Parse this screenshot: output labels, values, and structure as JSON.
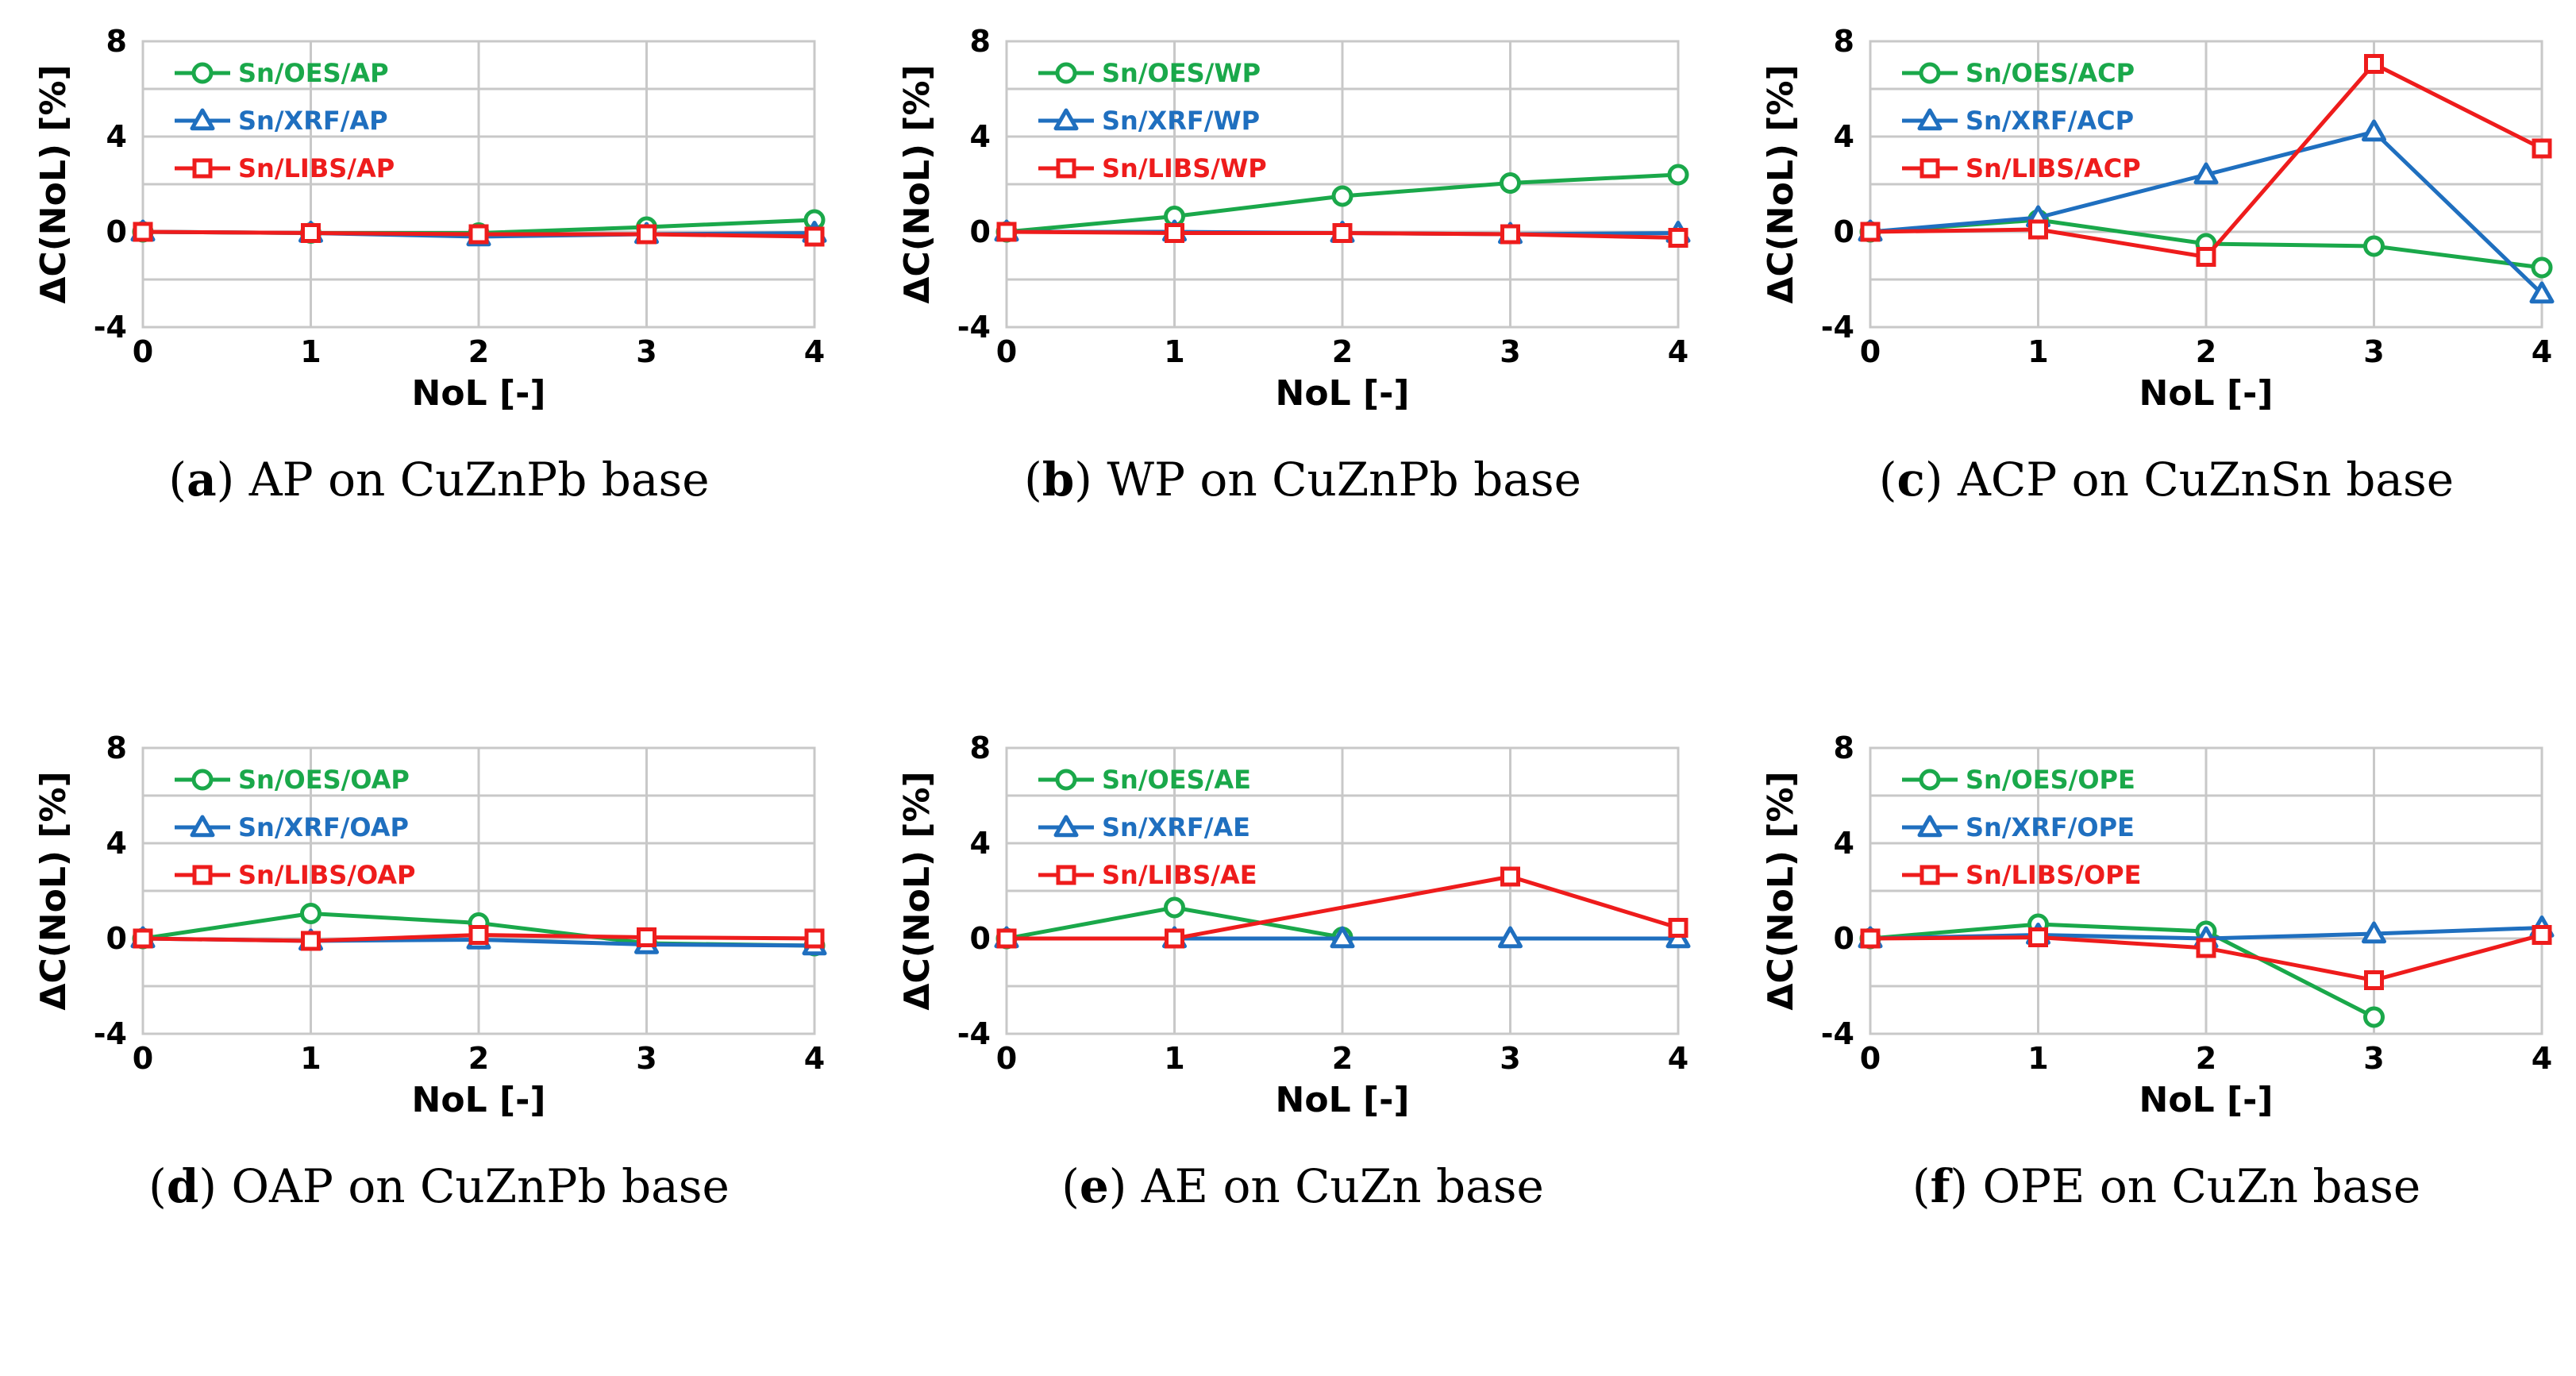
{
  "chart_data": [
    {
      "type": "line",
      "caption": {
        "letter": "a",
        "text": "AP on CuZnPb base"
      },
      "x": [
        0,
        1,
        2,
        3,
        4
      ],
      "xlabel": "NoL [-]",
      "ylabel": "ΔC(NoL) [%]",
      "ylim": [
        -4,
        8
      ],
      "yticks": [
        -4,
        0,
        4,
        8
      ],
      "grid": true,
      "legend_position": "top-left",
      "series": [
        {
          "name": "Sn/OES/AP",
          "color": "#1aa84a",
          "marker": "circle",
          "values": [
            0,
            -0.05,
            -0.05,
            0.2,
            0.5
          ]
        },
        {
          "name": "Sn/XRF/AP",
          "color": "#1f6fbf",
          "marker": "triangle",
          "values": [
            0,
            -0.05,
            -0.2,
            -0.1,
            -0.05
          ]
        },
        {
          "name": "Sn/LIBS/AP",
          "color": "#ee1c1c",
          "marker": "square",
          "values": [
            0,
            -0.05,
            -0.1,
            -0.1,
            -0.2
          ]
        }
      ]
    },
    {
      "type": "line",
      "caption": {
        "letter": "b",
        "text": "WP on CuZnPb base"
      },
      "x": [
        0,
        1,
        2,
        3,
        4
      ],
      "xlabel": "NoL [-]",
      "ylabel": "ΔC(NoL) [%]",
      "ylim": [
        -4,
        8
      ],
      "yticks": [
        -4,
        0,
        4,
        8
      ],
      "grid": true,
      "legend_position": "top-left",
      "series": [
        {
          "name": "Sn/OES/WP",
          "color": "#1aa84a",
          "marker": "circle",
          "values": [
            0,
            0.65,
            1.5,
            2.05,
            2.4
          ]
        },
        {
          "name": "Sn/XRF/WP",
          "color": "#1f6fbf",
          "marker": "triangle",
          "values": [
            0,
            0,
            -0.05,
            -0.1,
            -0.05
          ]
        },
        {
          "name": "Sn/LIBS/WP",
          "color": "#ee1c1c",
          "marker": "square",
          "values": [
            0,
            -0.05,
            -0.05,
            -0.1,
            -0.25
          ]
        }
      ]
    },
    {
      "type": "line",
      "caption": {
        "letter": "c",
        "text": "ACP on CuZnSn base"
      },
      "x": [
        0,
        1,
        2,
        3,
        4
      ],
      "xlabel": "NoL [-]",
      "ylabel": "ΔC(NoL) [%]",
      "ylim": [
        -4,
        8
      ],
      "yticks": [
        -4,
        0,
        4,
        8
      ],
      "grid": true,
      "legend_position": "top-left",
      "series": [
        {
          "name": "Sn/OES/ACP",
          "color": "#1aa84a",
          "marker": "circle",
          "values": [
            0,
            0.5,
            -0.5,
            -0.6,
            -1.5
          ]
        },
        {
          "name": "Sn/XRF/ACP",
          "color": "#1f6fbf",
          "marker": "triangle",
          "values": [
            0,
            0.6,
            2.4,
            4.2,
            -2.6
          ]
        },
        {
          "name": "Sn/LIBS/ACP",
          "color": "#ee1c1c",
          "marker": "square",
          "values": [
            0,
            0.1,
            -1.05,
            7.05,
            3.5
          ]
        }
      ]
    },
    {
      "type": "line",
      "caption": {
        "letter": "d",
        "text": "OAP on CuZnPb base"
      },
      "x": [
        0,
        1,
        2,
        3,
        4
      ],
      "xlabel": "NoL [-]",
      "ylabel": "ΔC(NoL) [%]",
      "ylim": [
        -4,
        8
      ],
      "yticks": [
        -4,
        0,
        4,
        8
      ],
      "grid": true,
      "legend_position": "top-left",
      "series": [
        {
          "name": "Sn/OES/OAP",
          "color": "#1aa84a",
          "marker": "circle",
          "values": [
            0,
            1.05,
            0.65,
            -0.2,
            -0.3
          ]
        },
        {
          "name": "Sn/XRF/OAP",
          "color": "#1f6fbf",
          "marker": "triangle",
          "values": [
            0,
            -0.1,
            -0.05,
            -0.25,
            -0.3
          ]
        },
        {
          "name": "Sn/LIBS/OAP",
          "color": "#ee1c1c",
          "marker": "square",
          "values": [
            0,
            -0.1,
            0.15,
            0.05,
            0
          ]
        }
      ]
    },
    {
      "type": "line",
      "caption": {
        "letter": "e",
        "text": "AE on CuZn base"
      },
      "x": [
        0,
        1,
        2,
        3,
        4
      ],
      "xlabel": "NoL [-]",
      "ylabel": "ΔC(NoL) [%]",
      "ylim": [
        -4,
        8
      ],
      "yticks": [
        -4,
        0,
        4,
        8
      ],
      "grid": true,
      "legend_position": "top-left",
      "series": [
        {
          "name": "Sn/OES/AE",
          "color": "#1aa84a",
          "marker": "circle",
          "values": [
            0,
            1.3,
            0.05,
            null,
            null
          ]
        },
        {
          "name": "Sn/XRF/AE",
          "color": "#1f6fbf",
          "marker": "triangle",
          "values": [
            0,
            0,
            0,
            0,
            0
          ]
        },
        {
          "name": "Sn/LIBS/AE",
          "color": "#ee1c1c",
          "marker": "square",
          "values": [
            0,
            0,
            null,
            2.6,
            0.45
          ]
        }
      ]
    },
    {
      "type": "line",
      "caption": {
        "letter": "f",
        "text": "OPE on CuZn base"
      },
      "x": [
        0,
        1,
        2,
        3,
        4
      ],
      "xlabel": "NoL [-]",
      "ylabel": "ΔC(NoL) [%]",
      "ylim": [
        -4,
        8
      ],
      "yticks": [
        -4,
        0,
        4,
        8
      ],
      "grid": true,
      "legend_position": "top-left",
      "series": [
        {
          "name": "Sn/OES/OPE",
          "color": "#1aa84a",
          "marker": "circle",
          "values": [
            0,
            0.6,
            0.3,
            -3.3,
            null
          ]
        },
        {
          "name": "Sn/XRF/OPE",
          "color": "#1f6fbf",
          "marker": "triangle",
          "values": [
            0,
            0.15,
            0,
            0.2,
            0.45
          ]
        },
        {
          "name": "Sn/LIBS/OPE",
          "color": "#ee1c1c",
          "marker": "square",
          "values": [
            0,
            0.05,
            -0.4,
            -1.75,
            0.15
          ]
        }
      ]
    }
  ]
}
